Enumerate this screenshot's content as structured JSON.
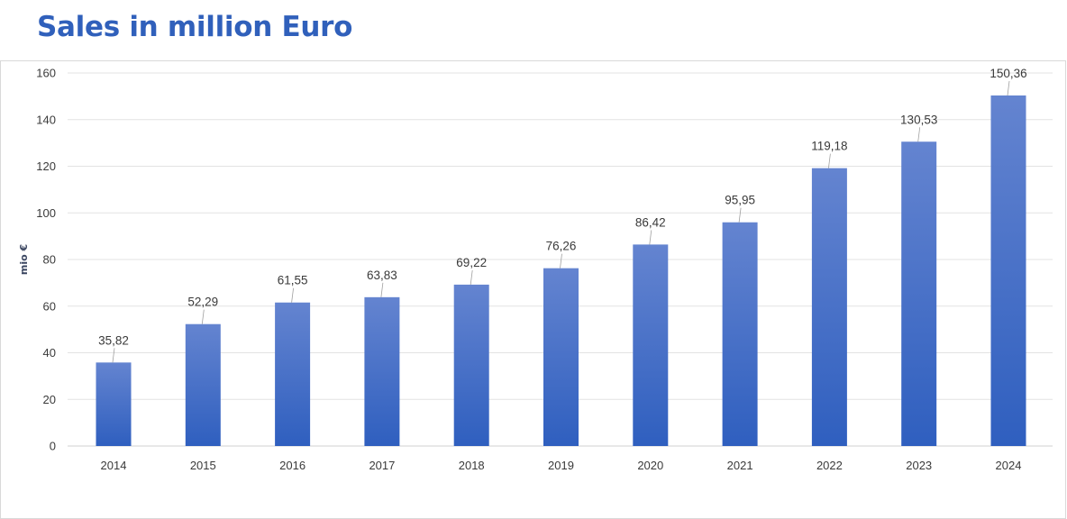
{
  "title": "Sales in million Euro",
  "colors": {
    "title": "#3060bb",
    "bar_top": "#6484d0",
    "bar_bottom": "#2f5fbf",
    "grid": "#e3e3e3",
    "leader": "#a0a0a0"
  },
  "chart_data": {
    "type": "bar",
    "title": "Sales in million Euro",
    "xlabel": "",
    "ylabel": "mio €",
    "ylim": [
      0,
      160
    ],
    "yticks": [
      0,
      20,
      40,
      60,
      80,
      100,
      120,
      140,
      160
    ],
    "grid": true,
    "categories": [
      "2014",
      "2015",
      "2016",
      "2017",
      "2018",
      "2019",
      "2020",
      "2021",
      "2022",
      "2023",
      "2024"
    ],
    "values": [
      35.82,
      52.29,
      61.55,
      63.83,
      69.22,
      76.26,
      86.42,
      95.95,
      119.18,
      130.53,
      150.36
    ],
    "value_labels": [
      "35,82",
      "52,29",
      "61,55",
      "63,83",
      "69,22",
      "76,26",
      "86,42",
      "95,95",
      "119,18",
      "130,53",
      "150,36"
    ]
  }
}
